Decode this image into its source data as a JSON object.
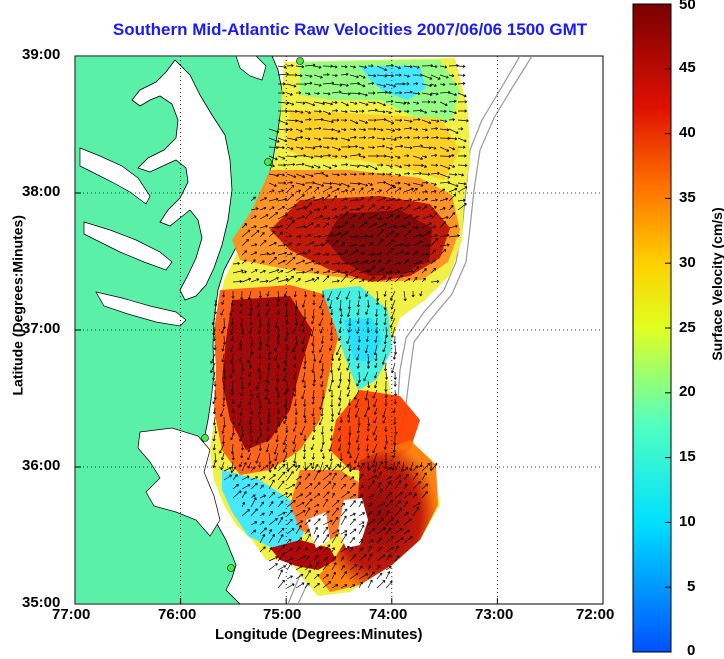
{
  "title": "Southern Mid-Atlantic Raw Velocities 2007/06/06 1500 GMT",
  "axes": {
    "xlabel": "Longitude (Degrees:Minutes)",
    "ylabel": "Latitude (Degrees:Minutes)",
    "xticks": [
      "77:00",
      "76:00",
      "75:00",
      "74:00",
      "73:00",
      "72:00"
    ],
    "yticks": [
      "39:00",
      "38:00",
      "37:00",
      "36:00",
      "35:00"
    ],
    "xlim": [
      -77,
      -72
    ],
    "ylim": [
      35,
      39
    ]
  },
  "colorbar": {
    "label": "Surface Velocity (cm/s)",
    "ticks": [
      "50",
      "45",
      "40",
      "35",
      "30",
      "25",
      "20",
      "15",
      "10",
      "5",
      "0"
    ],
    "range": [
      0,
      50
    ],
    "colormap": [
      "#0000ff",
      "#00c8ff",
      "#20ffe0",
      "#a0ff60",
      "#ffff00",
      "#ffa000",
      "#ff3000",
      "#c00000",
      "#780000"
    ]
  },
  "colors": {
    "land": "#5af0a8",
    "water": "#ffffff",
    "title": "#1a1aff"
  }
}
